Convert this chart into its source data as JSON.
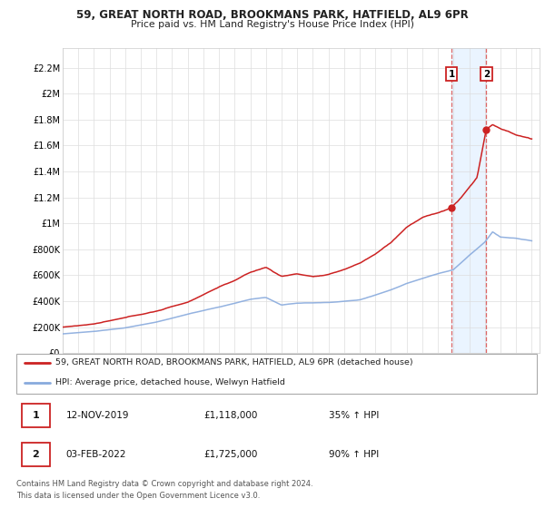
{
  "title1": "59, GREAT NORTH ROAD, BROOKMANS PARK, HATFIELD, AL9 6PR",
  "title2": "Price paid vs. HM Land Registry's House Price Index (HPI)",
  "ylabel_ticks": [
    "£0",
    "£200K",
    "£400K",
    "£600K",
    "£800K",
    "£1M",
    "£1.2M",
    "£1.4M",
    "£1.6M",
    "£1.8M",
    "£2M",
    "£2.2M"
  ],
  "ylabel_values": [
    0,
    200000,
    400000,
    600000,
    800000,
    1000000,
    1200000,
    1400000,
    1600000,
    1800000,
    2000000,
    2200000
  ],
  "ylim": [
    0,
    2350000
  ],
  "xlim_start": 1995.0,
  "xlim_end": 2025.5,
  "legend_line1": "59, GREAT NORTH ROAD, BROOKMANS PARK, HATFIELD, AL9 6PR (detached house)",
  "legend_line2": "HPI: Average price, detached house, Welwyn Hatfield",
  "marker1_date": "12-NOV-2019",
  "marker1_price": "£1,118,000",
  "marker1_hpi": "35% ↑ HPI",
  "marker1_x": 2019.87,
  "marker1_y": 1118000,
  "marker2_date": "03-FEB-2022",
  "marker2_price": "£1,725,000",
  "marker2_hpi": "90% ↑ HPI",
  "marker2_x": 2022.09,
  "marker2_y": 1725000,
  "red_color": "#cc2222",
  "blue_color": "#88aadd",
  "shade_color": "#ddeeff",
  "vline_color": "#dd6666",
  "footnote": "Contains HM Land Registry data © Crown copyright and database right 2024.\nThis data is licensed under the Open Government Licence v3.0.",
  "grid_color": "#dddddd",
  "background_color": "#ffffff"
}
